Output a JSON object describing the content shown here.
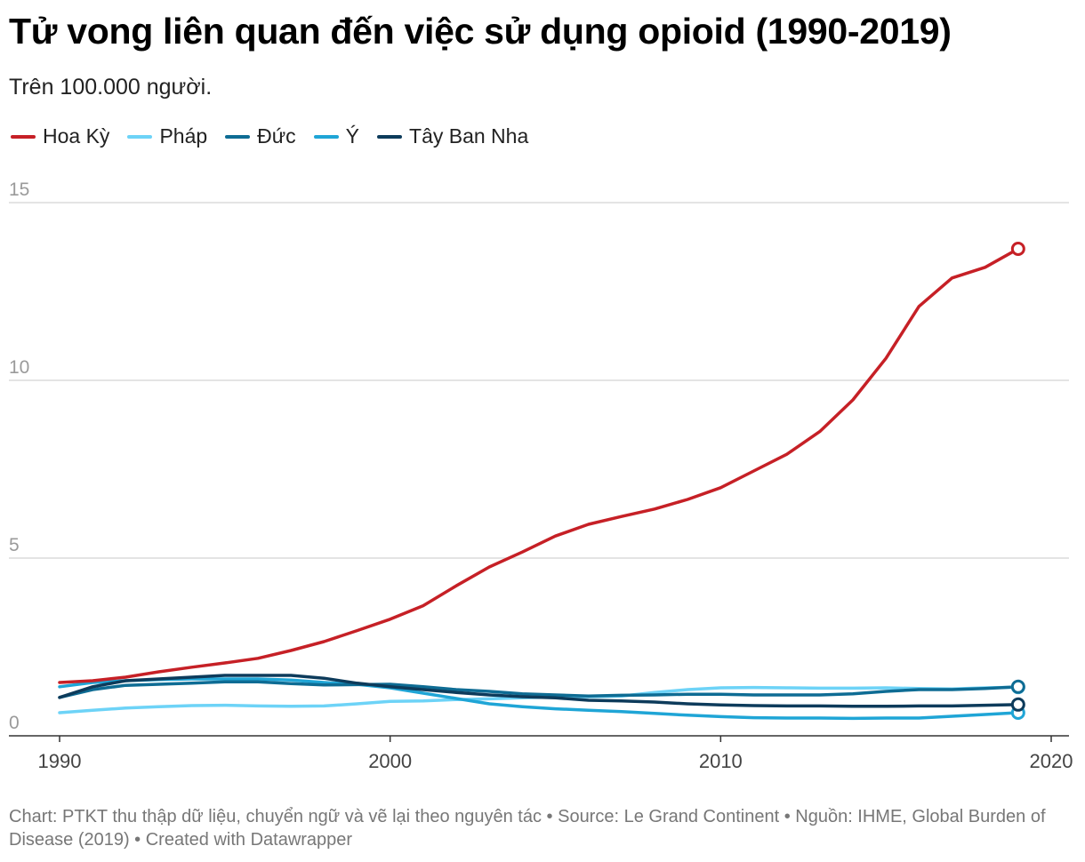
{
  "chart_data": {
    "type": "line",
    "title": "Tử vong liên quan đến việc sử dụng opioid (1990-2019)",
    "subtitle": "Trên 100.000 người.",
    "xlabel": "",
    "ylabel": "",
    "xlim": [
      1990,
      2020
    ],
    "ylim": [
      0,
      15
    ],
    "x_ticks": [
      1990,
      2000,
      2010,
      2020
    ],
    "y_ticks": [
      0,
      5,
      10,
      15
    ],
    "grid": true,
    "legend_position": "top-left",
    "x": [
      1990,
      1991,
      1992,
      1993,
      1994,
      1995,
      1996,
      1997,
      1998,
      1999,
      2000,
      2001,
      2002,
      2003,
      2004,
      2005,
      2006,
      2007,
      2008,
      2009,
      2010,
      2011,
      2012,
      2013,
      2014,
      2015,
      2016,
      2017,
      2018,
      2019
    ],
    "series": [
      {
        "name": "Hoa Kỳ",
        "color": "#c62026",
        "values": [
          1.5,
          1.55,
          1.65,
          1.8,
          1.93,
          2.05,
          2.18,
          2.4,
          2.65,
          2.96,
          3.28,
          3.66,
          4.22,
          4.75,
          5.17,
          5.62,
          5.95,
          6.17,
          6.38,
          6.65,
          6.98,
          7.45,
          7.92,
          8.56,
          9.45,
          10.62,
          12.08,
          12.88,
          13.18,
          13.7
        ]
      },
      {
        "name": "Pháp",
        "color": "#6dd3f7",
        "values": [
          0.65,
          0.72,
          0.78,
          0.82,
          0.85,
          0.86,
          0.84,
          0.83,
          0.84,
          0.9,
          0.97,
          0.98,
          1.02,
          1.04,
          1.07,
          1.09,
          1.1,
          1.12,
          1.22,
          1.3,
          1.35,
          1.36,
          1.35,
          1.34,
          1.34,
          1.35,
          1.33,
          1.32,
          1.35,
          1.37
        ]
      },
      {
        "name": "Đức",
        "color": "#0e6c94",
        "values": [
          1.08,
          1.3,
          1.42,
          1.45,
          1.48,
          1.52,
          1.52,
          1.47,
          1.43,
          1.44,
          1.45,
          1.38,
          1.3,
          1.25,
          1.18,
          1.15,
          1.12,
          1.14,
          1.15,
          1.17,
          1.17,
          1.15,
          1.15,
          1.15,
          1.18,
          1.25,
          1.3,
          1.3,
          1.33,
          1.38
        ]
      },
      {
        "name": "Ý",
        "color": "#1fa5d6",
        "values": [
          1.38,
          1.5,
          1.55,
          1.58,
          1.6,
          1.6,
          1.6,
          1.57,
          1.5,
          1.45,
          1.35,
          1.2,
          1.05,
          0.9,
          0.82,
          0.76,
          0.72,
          0.68,
          0.63,
          0.58,
          0.54,
          0.51,
          0.5,
          0.5,
          0.49,
          0.5,
          0.5,
          0.55,
          0.6,
          0.65
        ]
      },
      {
        "name": "Tây Ban Nha",
        "color": "#0d3b5b",
        "values": [
          1.08,
          1.38,
          1.55,
          1.6,
          1.65,
          1.7,
          1.7,
          1.7,
          1.62,
          1.48,
          1.38,
          1.3,
          1.22,
          1.15,
          1.1,
          1.07,
          1.0,
          0.98,
          0.95,
          0.9,
          0.87,
          0.85,
          0.84,
          0.84,
          0.83,
          0.83,
          0.84,
          0.84,
          0.86,
          0.88
        ]
      }
    ]
  },
  "footer": {
    "text": "Chart: PTKT thu thập dữ liệu, chuyển ngữ và vẽ lại theo nguyên tác • Source: Le Grand Continent • Nguồn: IHME, Global Burden of Disease (2019)  • Created with Datawrapper"
  }
}
